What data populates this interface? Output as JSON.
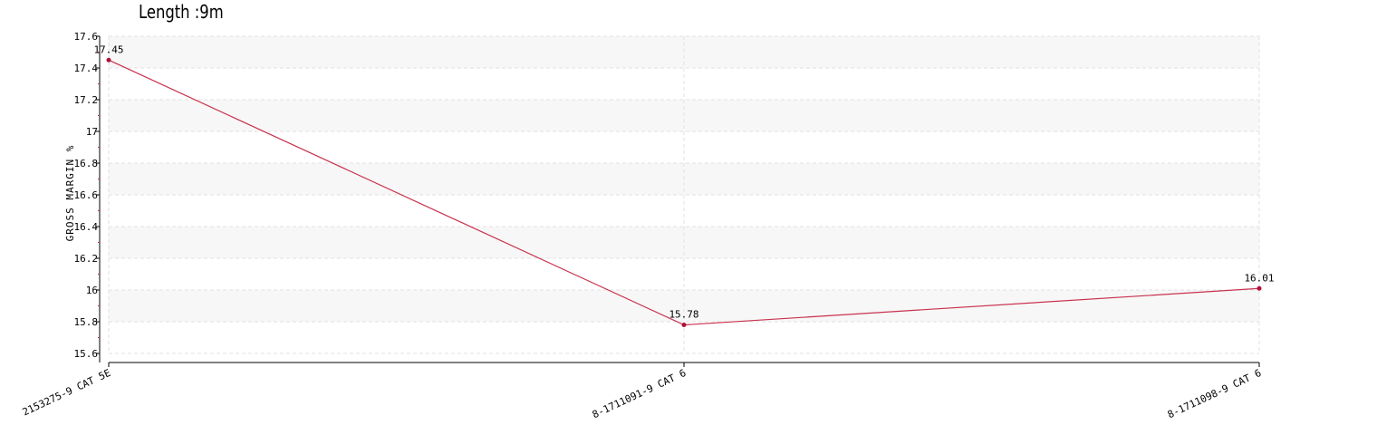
{
  "chart_data": {
    "type": "line",
    "title": "Length :9m",
    "xlabel": "",
    "ylabel": "GROSS MARGIN %",
    "categories": [
      "2153275-9 CAT 5E",
      "8-1711091-9 CAT 6",
      "8-1711098-9 CAT 6"
    ],
    "series": [
      {
        "values": [
          17.45,
          15.78,
          16.01
        ]
      }
    ],
    "data_labels": [
      "17.45",
      "15.78",
      "16.01"
    ],
    "ylim": [
      15.6,
      17.6
    ],
    "yticks": [
      15.6,
      15.8,
      16,
      16.2,
      16.4,
      16.6,
      16.8,
      17,
      17.2,
      17.4,
      17.6
    ],
    "ytick_labels": [
      "15.6",
      "15.8",
      "16",
      "16.2",
      "16.4",
      "16.6",
      "16.8",
      "17",
      "17.2",
      "17.4",
      "17.6"
    ],
    "grid": true,
    "legend": "none",
    "colors": {
      "line": "#c8324e",
      "marker": "#b0103a",
      "band": "#f7f7f7",
      "grid": "#e2e2e2"
    }
  }
}
